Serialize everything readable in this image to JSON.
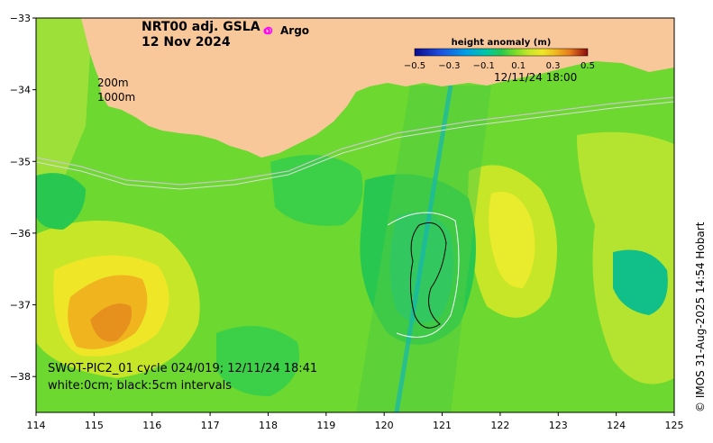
{
  "title": {
    "line1": "NRT00 adj. GSLA",
    "line2": "12 Nov 2024"
  },
  "argo_legend": {
    "symbol": "o",
    "label": "Argo",
    "color": "#ff00ff"
  },
  "colorbar": {
    "title": "height anomaly (m)",
    "ticks": [
      "−0.5",
      "−0.3",
      "−0.1",
      "0.1",
      "0.3",
      "0.5"
    ],
    "range": [
      -0.5,
      0.5
    ],
    "colors": [
      "#0a0a8c",
      "#1e50e0",
      "#00a0e6",
      "#00c8a0",
      "#28c850",
      "#78dc28",
      "#c8e628",
      "#f0e628",
      "#f0b41e",
      "#e6781e",
      "#c81e1e",
      "#8c0a0a"
    ]
  },
  "timestamp": "12/11/24 18:00",
  "isobaths": [
    "200m",
    "1000m"
  ],
  "swot_note": {
    "line1": "SWOT-PIC2_01 cycle 024/019; 12/11/24 18:41",
    "line2": "white:0cm; black:5cm intervals"
  },
  "credit": "© IMOS 31-Aug-2025 14:54 Hobart",
  "axes": {
    "x_ticks": [
      "114",
      "115",
      "116",
      "117",
      "118",
      "119",
      "120",
      "121",
      "122",
      "123",
      "124",
      "125"
    ],
    "y_ticks": [
      "−33",
      "−34",
      "−35",
      "−36",
      "−37",
      "−38"
    ],
    "x_range": [
      114,
      125
    ],
    "y_range": [
      -38.5,
      -33
    ]
  },
  "colors": {
    "land": "#f8c89a",
    "background_sla": "#6cd830"
  }
}
